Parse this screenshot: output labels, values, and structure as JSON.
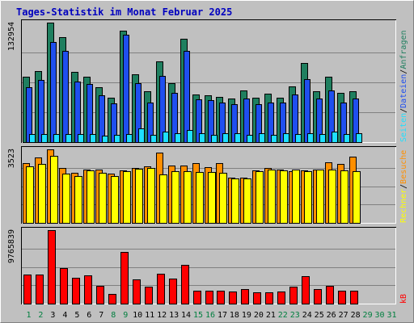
{
  "chart_data": {
    "type": "bar",
    "title": "Tages-Statistik im Monat Februar 2025",
    "categories": [
      "1",
      "2",
      "3",
      "4",
      "5",
      "6",
      "7",
      "8",
      "9",
      "10",
      "11",
      "12",
      "13",
      "14",
      "15",
      "16",
      "17",
      "18",
      "19",
      "20",
      "21",
      "22",
      "23",
      "24",
      "25",
      "26",
      "27",
      "28",
      "29",
      "30",
      "31"
    ],
    "category_colors": {
      "weekday": "#000000",
      "weekend": "#007f3f",
      "no_data": "#007f3f"
    },
    "weekend_days": [
      "1",
      "2",
      "8",
      "9",
      "15",
      "16",
      "22",
      "23"
    ],
    "no_data_days": [
      "29",
      "30",
      "31"
    ],
    "panels": [
      {
        "name": "hits-files-pages-panel",
        "max_label": "132954",
        "ylim": [
          0,
          132954
        ],
        "series": [
          {
            "name": "Anfragen",
            "color": "#1f7f5f",
            "values": [
              72800,
              79200,
              132954,
              117000,
              78200,
              73100,
              61200,
              49600,
              124200,
              75400,
              56600,
              89800,
              65800,
              115300,
              53100,
              52400,
              50600,
              48600,
              57300,
              49600,
              54200,
              49600,
              61800,
              88300,
              56700,
              73200,
              54700,
              56600,
              null,
              null,
              null
            ]
          },
          {
            "name": "Dateien",
            "color": "#1f4fef",
            "values": [
              60700,
              69300,
              111800,
              101800,
              67100,
              64400,
              52400,
              43300,
              119200,
              65400,
              44200,
              73400,
              54700,
              101500,
              47200,
              46500,
              43900,
              42600,
              48600,
              42100,
              43800,
              43900,
              53100,
              70400,
              48200,
              57600,
              44300,
              48700,
              null,
              null,
              null
            ]
          },
          {
            "name": "Seiten",
            "color": "#1fdfff",
            "values": [
              8900,
              9200,
              8900,
              8700,
              9400,
              9000,
              7300,
              7700,
              8900,
              15500,
              8400,
              11500,
              9900,
              13600,
              9700,
              8500,
              9700,
              9500,
              8500,
              9500,
              8400,
              9700,
              9400,
              9700,
              9100,
              11700,
              9100,
              9700,
              null,
              null,
              null
            ]
          }
        ]
      },
      {
        "name": "visits-sites-panel",
        "max_label": "3523",
        "ylim": [
          0,
          3523
        ],
        "series": [
          {
            "name": "Besuche",
            "color": "#ff8f00",
            "values": [
              2870,
              3130,
              3523,
              2630,
              2390,
              2540,
              2540,
              2380,
              2520,
              2630,
              2710,
              3380,
              2760,
              2760,
              2880,
              2680,
              2850,
              2170,
              2180,
              2520,
              2640,
              2540,
              2460,
              2520,
              2550,
              2920,
              2820,
              3170,
              null,
              null,
              null
            ]
          },
          {
            "name": "Rechner",
            "color": "#ffff00",
            "values": [
              2720,
              2820,
              3200,
              2380,
              2240,
              2520,
              2400,
              2240,
              2460,
              2580,
              2620,
              2340,
              2480,
              2460,
              2440,
              2430,
              2410,
              2140,
              2120,
              2480,
              2550,
              2520,
              2560,
              2460,
              2560,
              2560,
              2520,
              2480,
              null,
              null,
              null
            ]
          }
        ]
      },
      {
        "name": "kbytes-panel",
        "max_label": "9765839",
        "ylim": [
          0,
          9765839
        ],
        "series": [
          {
            "name": "kB",
            "color": "#ff0000",
            "values": [
              3900000,
              3900000,
              9765839,
              4700000,
              3400000,
              3800000,
              2400000,
              1300000,
              6900000,
              3200000,
              2200000,
              4000000,
              3300000,
              5100000,
              1700000,
              1700000,
              1700000,
              1600000,
              1900000,
              1500000,
              1500000,
              1600000,
              2300000,
              3600000,
              1900000,
              2400000,
              1700000,
              1700000,
              null,
              null,
              null
            ]
          }
        ]
      }
    ]
  },
  "right_legend": {
    "top": [
      "Anfragen",
      "Dateien",
      "Seiten"
    ],
    "middle": [
      "Besuche",
      "Rechner"
    ],
    "bottom": [
      "kB"
    ],
    "separator": "/"
  }
}
